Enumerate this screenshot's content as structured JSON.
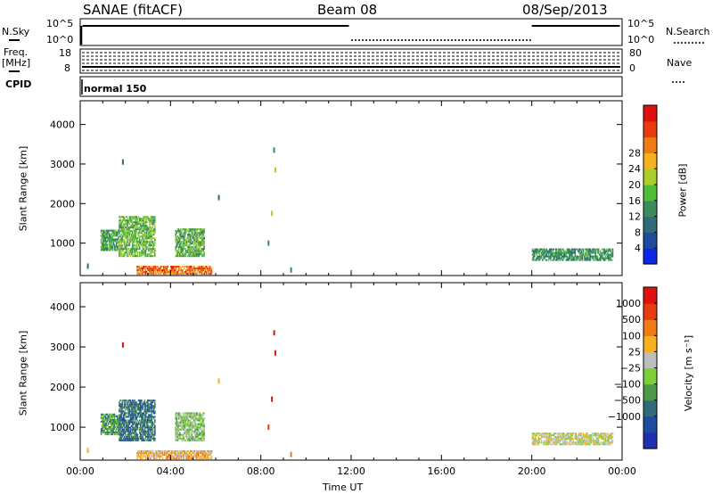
{
  "header": {
    "station": "SANAE (fitACF)",
    "beam": "Beam 08",
    "date": "08/Sep/2013"
  },
  "top_panels": {
    "nsky_label": "N.Sky",
    "nsky_ticks": [
      "10^5",
      "10^0"
    ],
    "nsearch_label": "N.Search",
    "nsearch_ticks": [
      "10^5",
      "10^0"
    ],
    "freq_label_1": "Freq.",
    "freq_label_2": "[MHz]",
    "freq_ticks": [
      "18",
      "8"
    ],
    "nave_label": "Nave",
    "nave_ticks": [
      "80",
      "0"
    ],
    "cpid_label": "CPID",
    "cpid_value": "normal 150"
  },
  "colors": {
    "power_scale": [
      "#0a28e6",
      "#1e4aa0",
      "#2f6b7a",
      "#3b8c5a",
      "#4fbf3a",
      "#a8cf2a",
      "#f5b21e",
      "#f07a14",
      "#e83c0e",
      "#e0100c"
    ],
    "velocity_scale": [
      "#1f2fb0",
      "#1e4aa0",
      "#2f6b7a",
      "#4a9a48",
      "#7ad038",
      "#bdbdbd",
      "#f5b21e",
      "#f07a14",
      "#e83c0e",
      "#e0100c"
    ],
    "ground_scatter": "#bdbdbd"
  },
  "chart_data": [
    {
      "type": "heatmap",
      "name": "power",
      "xlabel": "Time UT",
      "ylabel": "Slant Range [km]",
      "x_ticks": [
        "00:00",
        "04:00",
        "08:00",
        "12:00",
        "16:00",
        "20:00",
        "00:00"
      ],
      "xlim_hours": [
        0,
        24
      ],
      "y_ticks": [
        1000,
        2000,
        3000,
        4000
      ],
      "ylim_km": [
        180,
        4600
      ],
      "colorbar_label": "Power [dB]",
      "colorbar_ticks": [
        "4",
        "8",
        "12",
        "16",
        "20",
        "24",
        "28"
      ],
      "colorbar_range": [
        0,
        32
      ],
      "regions": [
        {
          "t0": 0.9,
          "t1": 1.7,
          "r0": 800,
          "r1": 1300,
          "v": 10
        },
        {
          "t0": 1.7,
          "t1": 3.3,
          "r0": 650,
          "r1": 1650,
          "v": 12
        },
        {
          "t0": 4.2,
          "t1": 5.5,
          "r0": 650,
          "r1": 1350,
          "v": 11
        },
        {
          "t0": 2.5,
          "t1": 5.8,
          "r0": 200,
          "r1": 380,
          "v": 22
        },
        {
          "t0": 20.0,
          "t1": 23.6,
          "r0": 550,
          "r1": 850,
          "v": 9
        }
      ],
      "points": [
        {
          "t": 1.85,
          "r": 3050,
          "v": 6
        },
        {
          "t": 6.1,
          "r": 2150,
          "v": 6
        },
        {
          "t": 8.55,
          "r": 3350,
          "v": 8
        },
        {
          "t": 8.6,
          "r": 2850,
          "v": 16
        },
        {
          "t": 8.45,
          "r": 1750,
          "v": 14
        },
        {
          "t": 8.3,
          "r": 1000,
          "v": 10
        },
        {
          "t": 9.3,
          "r": 320,
          "v": 8
        },
        {
          "t": 0.3,
          "r": 420,
          "v": 6
        }
      ]
    },
    {
      "type": "heatmap",
      "name": "velocity",
      "xlabel": "Time UT",
      "ylabel": "Slant Range [km]",
      "x_ticks": [
        "00:00",
        "04:00",
        "08:00",
        "12:00",
        "16:00",
        "20:00",
        "00:00"
      ],
      "xlim_hours": [
        0,
        24
      ],
      "y_ticks": [
        1000,
        2000,
        3000,
        4000
      ],
      "ylim_km": [
        180,
        4600
      ],
      "colorbar_label": "Velocity [m s⁻¹]",
      "colorbar_ticks": [
        "1000",
        "500",
        "100",
        "25",
        "−25",
        "−100",
        "−500",
        "−1000"
      ],
      "regions": [
        {
          "t0": 0.9,
          "t1": 1.7,
          "r0": 800,
          "r1": 1300,
          "v": 3
        },
        {
          "t0": 1.7,
          "t1": 3.3,
          "r0": 650,
          "r1": 1650,
          "v": 2
        },
        {
          "t0": 4.2,
          "t1": 5.5,
          "r0": 650,
          "r1": 1350,
          "v": 4
        },
        {
          "t0": 2.5,
          "t1": 5.8,
          "r0": 200,
          "r1": 380,
          "v": 6
        },
        {
          "t0": 20.0,
          "t1": 23.6,
          "r0": 550,
          "r1": 850,
          "v": 5
        }
      ],
      "points": [
        {
          "t": 1.85,
          "r": 3050,
          "v": 9
        },
        {
          "t": 6.1,
          "r": 2150,
          "v": 6
        },
        {
          "t": 8.55,
          "r": 3350,
          "v": 9
        },
        {
          "t": 8.6,
          "r": 2850,
          "v": 9
        },
        {
          "t": 8.45,
          "r": 1700,
          "v": 9
        },
        {
          "t": 8.3,
          "r": 1000,
          "v": 8
        },
        {
          "t": 9.3,
          "r": 320,
          "v": 7
        },
        {
          "t": 0.3,
          "r": 420,
          "v": 6
        }
      ]
    }
  ]
}
